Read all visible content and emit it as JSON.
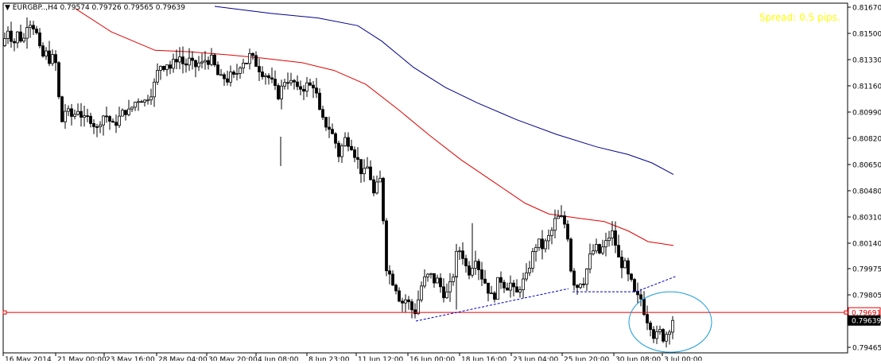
{
  "header": {
    "symbol_label": "EURGBP..,H4",
    "ohlc": [
      "0.79574",
      "0.79726",
      "0.79565",
      "0.79639"
    ],
    "menu_glyph": "▼"
  },
  "spread_text": "Spread: 0.5 pips.",
  "colors": {
    "background": "#ffffff",
    "frame": "#000000",
    "candle": "#000000",
    "ma_fast": "#e00000",
    "ma_slow": "#00008b",
    "horizontal_line": "#e00000",
    "trendline": "#0000cd",
    "circle": "#1a9bd7",
    "spread": "#ffff00",
    "price_tag_bg": "#000000",
    "price_tag_text": "#ffffff"
  },
  "chart_data": {
    "type": "candlestick",
    "symbol": "EURGBP..",
    "timeframe": "H4",
    "y_axis": {
      "ticks": [
        "0.81670",
        "0.81500",
        "0.81330",
        "0.81160",
        "0.80990",
        "0.80820",
        "0.80650",
        "0.80480",
        "0.80310",
        "0.80140",
        "0.79975",
        "0.79805",
        "0.79635",
        "0.79465"
      ],
      "range": [
        0.79465,
        0.8167
      ]
    },
    "x_axis": {
      "ticks": [
        "16 May 2014",
        "21 May 00:00",
        "23 May 16:00",
        "28 May 04:00",
        "30 May 20:00",
        "4 Jun 08:00",
        "8 Jun 23:00",
        "11 Jun 12:00",
        "16 Jun 00:00",
        "18 Jun 16:00",
        "23 Jun 04:00",
        "25 Jun 20:00",
        "30 Jun 08:00",
        "3 Jul 00:00"
      ]
    },
    "price_tags": [
      {
        "label": "0.79691",
        "value": 0.79691
      },
      {
        "label": "0.79639",
        "value": 0.79639
      }
    ],
    "horizontal_line": {
      "value": 0.79691
    },
    "close_path": [
      [
        0,
        0.8159
      ],
      [
        6,
        0.8142
      ],
      [
        13,
        0.8153
      ],
      [
        20,
        0.8143
      ],
      [
        25,
        0.815
      ],
      [
        32,
        0.8144
      ],
      [
        38,
        0.8159
      ],
      [
        44,
        0.8156
      ],
      [
        50,
        0.8148
      ],
      [
        55,
        0.8133
      ],
      [
        60,
        0.8138
      ],
      [
        66,
        0.8132
      ],
      [
        72,
        0.8136
      ],
      [
        77,
        0.8108
      ],
      [
        81,
        0.8093
      ],
      [
        85,
        0.81
      ],
      [
        90,
        0.8098
      ],
      [
        95,
        0.8095
      ],
      [
        100,
        0.8102
      ],
      [
        105,
        0.8097
      ],
      [
        110,
        0.8093
      ],
      [
        115,
        0.8096
      ],
      [
        120,
        0.8092
      ],
      [
        125,
        0.8088
      ],
      [
        130,
        0.8095
      ],
      [
        135,
        0.8098
      ],
      [
        140,
        0.8094
      ],
      [
        145,
        0.809
      ],
      [
        150,
        0.8093
      ],
      [
        155,
        0.8097
      ],
      [
        160,
        0.81
      ],
      [
        165,
        0.8099
      ],
      [
        170,
        0.8103
      ],
      [
        175,
        0.8107
      ],
      [
        180,
        0.8108
      ],
      [
        185,
        0.8106
      ],
      [
        190,
        0.811
      ],
      [
        195,
        0.8113
      ],
      [
        200,
        0.8123
      ],
      [
        204,
        0.813
      ],
      [
        208,
        0.8128
      ],
      [
        212,
        0.8132
      ],
      [
        216,
        0.8127
      ],
      [
        220,
        0.813
      ],
      [
        224,
        0.8133
      ],
      [
        228,
        0.8136
      ],
      [
        232,
        0.8131
      ],
      [
        236,
        0.8129
      ],
      [
        240,
        0.8133
      ],
      [
        244,
        0.813
      ],
      [
        248,
        0.8128
      ],
      [
        252,
        0.8131
      ],
      [
        256,
        0.8129
      ],
      [
        260,
        0.8133
      ],
      [
        264,
        0.8132
      ],
      [
        268,
        0.8134
      ],
      [
        272,
        0.813
      ],
      [
        276,
        0.8124
      ],
      [
        280,
        0.812
      ],
      [
        284,
        0.8122
      ],
      [
        288,
        0.8119
      ],
      [
        292,
        0.8123
      ],
      [
        296,
        0.8121
      ],
      [
        300,
        0.8123
      ],
      [
        304,
        0.8129
      ],
      [
        308,
        0.8133
      ],
      [
        312,
        0.813
      ],
      [
        316,
        0.8136
      ],
      [
        320,
        0.8134
      ],
      [
        324,
        0.8131
      ],
      [
        328,
        0.8128
      ],
      [
        332,
        0.8125
      ],
      [
        336,
        0.8124
      ],
      [
        340,
        0.8122
      ],
      [
        344,
        0.8119
      ],
      [
        348,
        0.8115
      ],
      [
        352,
        0.8109
      ],
      [
        356,
        0.8113
      ],
      [
        360,
        0.8119
      ],
      [
        364,
        0.8121
      ],
      [
        368,
        0.8117
      ],
      [
        372,
        0.812
      ],
      [
        376,
        0.8112
      ],
      [
        380,
        0.8115
      ],
      [
        384,
        0.8114
      ],
      [
        388,
        0.8117
      ],
      [
        392,
        0.8115
      ],
      [
        396,
        0.8118
      ],
      [
        400,
        0.8113
      ],
      [
        404,
        0.81
      ],
      [
        408,
        0.8094
      ],
      [
        412,
        0.8091
      ],
      [
        416,
        0.809
      ],
      [
        420,
        0.8085
      ],
      [
        424,
        0.8082
      ],
      [
        428,
        0.807
      ],
      [
        432,
        0.8075
      ],
      [
        436,
        0.8082
      ],
      [
        440,
        0.808
      ],
      [
        444,
        0.8079
      ],
      [
        448,
        0.8073
      ],
      [
        452,
        0.8069
      ],
      [
        456,
        0.8062
      ],
      [
        460,
        0.8058
      ],
      [
        464,
        0.8064
      ],
      [
        468,
        0.806
      ],
      [
        472,
        0.8045
      ],
      [
        476,
        0.8048
      ],
      [
        480,
        0.806
      ],
      [
        484,
        0.804
      ],
      [
        488,
        0.8
      ],
      [
        492,
        0.7995
      ],
      [
        496,
        0.799
      ],
      [
        500,
        0.7987
      ],
      [
        504,
        0.798
      ],
      [
        508,
        0.7975
      ],
      [
        512,
        0.7978
      ],
      [
        516,
        0.7976
      ],
      [
        520,
        0.7972
      ],
      [
        524,
        0.7968
      ],
      [
        528,
        0.7975
      ],
      [
        532,
        0.7985
      ],
      [
        536,
        0.799
      ],
      [
        540,
        0.7992
      ],
      [
        544,
        0.7994
      ],
      [
        548,
        0.7989
      ],
      [
        552,
        0.7991
      ],
      [
        556,
        0.7987
      ],
      [
        560,
        0.7982
      ],
      [
        564,
        0.798
      ],
      [
        568,
        0.7985
      ],
      [
        572,
        0.799
      ],
      [
        576,
        0.8005
      ],
      [
        580,
        0.801
      ],
      [
        584,
        0.8008
      ],
      [
        588,
        0.8
      ],
      [
        592,
        0.7995
      ],
      [
        596,
        0.7998
      ],
      [
        600,
        0.8007
      ],
      [
        604,
        0.8
      ],
      [
        608,
        0.7993
      ],
      [
        612,
        0.799
      ],
      [
        616,
        0.7985
      ],
      [
        620,
        0.798
      ],
      [
        624,
        0.7978
      ],
      [
        628,
        0.7988
      ],
      [
        632,
        0.7991
      ],
      [
        636,
        0.7988
      ],
      [
        640,
        0.7985
      ],
      [
        644,
        0.7989
      ],
      [
        648,
        0.7984
      ],
      [
        652,
        0.798
      ],
      [
        656,
        0.7985
      ],
      [
        660,
        0.7989
      ],
      [
        664,
        0.799
      ],
      [
        668,
        0.7998
      ],
      [
        672,
        0.8005
      ],
      [
        676,
        0.8012
      ],
      [
        680,
        0.8015
      ],
      [
        684,
        0.8011
      ],
      [
        688,
        0.8013
      ],
      [
        692,
        0.8017
      ],
      [
        696,
        0.802
      ],
      [
        700,
        0.8028
      ],
      [
        704,
        0.803
      ],
      [
        708,
        0.8031
      ],
      [
        712,
        0.8027
      ],
      [
        716,
        0.8025
      ],
      [
        720,
        0.8
      ],
      [
        724,
        0.799
      ],
      [
        728,
        0.7985
      ],
      [
        732,
        0.799
      ],
      [
        736,
        0.7988
      ],
      [
        740,
        0.7995
      ],
      [
        744,
        0.8004
      ],
      [
        748,
        0.8008
      ],
      [
        752,
        0.8012
      ],
      [
        756,
        0.8007
      ],
      [
        760,
        0.801
      ],
      [
        764,
        0.8013
      ],
      [
        768,
        0.8017
      ],
      [
        772,
        0.8022
      ],
      [
        776,
        0.8016
      ],
      [
        780,
        0.8005
      ],
      [
        784,
        0.8
      ],
      [
        788,
        0.8002
      ],
      [
        792,
        0.7993
      ],
      [
        796,
        0.799
      ],
      [
        800,
        0.7982
      ],
      [
        804,
        0.7978
      ],
      [
        808,
        0.798
      ],
      [
        812,
        0.7972
      ],
      [
        816,
        0.7965
      ],
      [
        820,
        0.7963
      ],
      [
        824,
        0.7955
      ],
      [
        828,
        0.7953
      ],
      [
        832,
        0.7958
      ],
      [
        836,
        0.7952
      ],
      [
        840,
        0.7955
      ],
      [
        844,
        0.7957
      ],
      [
        847,
        0.79639
      ]
    ],
    "ma_fast": [
      [
        95,
        0.8166
      ],
      [
        140,
        0.8151
      ],
      [
        195,
        0.8139
      ],
      [
        240,
        0.8138
      ],
      [
        290,
        0.8136
      ],
      [
        330,
        0.8134
      ],
      [
        380,
        0.8131
      ],
      [
        420,
        0.8126
      ],
      [
        460,
        0.8117
      ],
      [
        500,
        0.8101
      ],
      [
        540,
        0.8084
      ],
      [
        580,
        0.8068
      ],
      [
        620,
        0.8054
      ],
      [
        660,
        0.804
      ],
      [
        690,
        0.8033
      ],
      [
        730,
        0.803
      ],
      [
        760,
        0.8028
      ],
      [
        790,
        0.8022
      ],
      [
        815,
        0.8015
      ],
      [
        847,
        0.80125
      ]
    ],
    "ma_slow": [
      [
        270,
        0.81675
      ],
      [
        340,
        0.8163
      ],
      [
        400,
        0.816
      ],
      [
        450,
        0.8155
      ],
      [
        480,
        0.8145
      ],
      [
        520,
        0.8128
      ],
      [
        560,
        0.8115
      ],
      [
        600,
        0.8105
      ],
      [
        650,
        0.8094
      ],
      [
        700,
        0.80845
      ],
      [
        750,
        0.80765
      ],
      [
        790,
        0.80715
      ],
      [
        820,
        0.8066
      ],
      [
        847,
        0.80585
      ]
    ],
    "trendlines": [
      {
        "points": [
          [
            523,
            0.79635
          ],
          [
            715,
            0.79845
          ]
        ],
        "style": "dashed"
      },
      {
        "points": [
          [
            720,
            0.79825
          ],
          [
            800,
            0.79825
          ],
          [
            850,
            0.79925
          ]
        ],
        "style": "dashed"
      }
    ],
    "ellipse": {
      "center": [
        843,
        0.79629
      ],
      "radii_px": [
        52,
        38
      ]
    }
  }
}
